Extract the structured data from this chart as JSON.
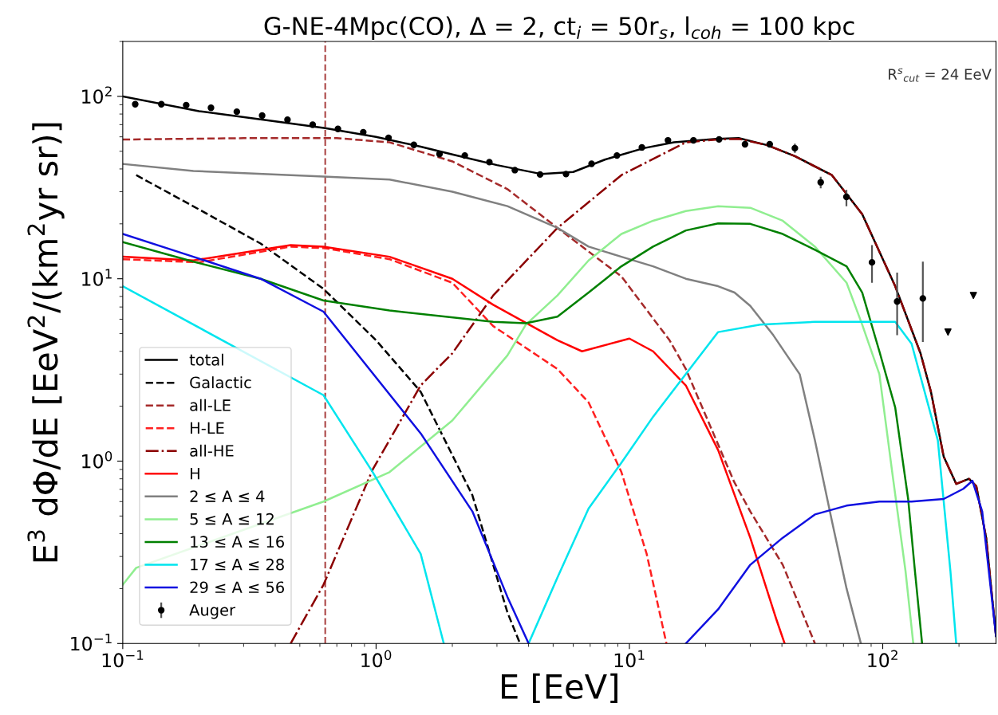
{
  "chart_data": {
    "type": "line",
    "title": "G-NE-4Mpc(CO), Δ = 2, ct$_{i}$ = 50r$_{s}$, l$_{coh}$ = 100 kpc",
    "xlabel": "E [EeV]",
    "ylabel": "E$^{3}$ dΦ/dE [EeV$^{2}$/(km$^{2}$yr sr)]",
    "annotations": [
      "R$^{s}$$_{cut}$ = 24 EeV"
    ],
    "log": "xy",
    "xlim": [
      0.1,
      280
    ],
    "ylim": [
      0.1,
      200
    ],
    "xticks": [
      {
        "value": 0.1,
        "label": "10$^{−1}$"
      },
      {
        "value": 1,
        "label": "10$^{0}$"
      },
      {
        "value": 10,
        "label": "10$^{1}$"
      },
      {
        "value": 100,
        "label": "10$^{2}$"
      }
    ],
    "yticks": [
      {
        "value": 0.1,
        "label": "10$^{−1}$"
      },
      {
        "value": 1,
        "label": "10$^{0}$"
      },
      {
        "value": 10,
        "label": "10$^{1}$"
      },
      {
        "value": 100,
        "label": "10$^{2}$"
      }
    ],
    "grid": false,
    "legend": "bottom left",
    "ref_lines": [
      {
        "axis": "x",
        "value": 0.63,
        "color": "#b05050",
        "line_style": "dashed"
      }
    ],
    "series": [
      {
        "name": "total",
        "color": "#000000",
        "line_style": "solid",
        "x": [
          0.1,
          0.2,
          0.4,
          0.63,
          1.0,
          1.5,
          2,
          3,
          4.5,
          6,
          8,
          11.4,
          15,
          22,
          27,
          35,
          45,
          63,
          83,
          112,
          141,
          155,
          174,
          195,
          219,
          234,
          256,
          280
        ],
        "values": [
          100,
          83,
          73,
          67,
          60,
          53,
          48,
          42,
          37.5,
          38.5,
          45,
          52,
          56,
          58.5,
          59,
          54,
          47,
          37,
          22.6,
          9.1,
          3.9,
          2.4,
          1.06,
          0.75,
          0.8,
          0.73,
          0.38,
          0.11
        ]
      },
      {
        "name": "Galactic",
        "color": "#000000",
        "line_style": "dashed",
        "x": [
          0.113,
          0.2,
          0.35,
          0.62,
          1.0,
          1.5,
          2.4,
          3.3,
          3.7
        ],
        "values": [
          37,
          24,
          15.6,
          8.8,
          4.6,
          2.4,
          0.65,
          0.148,
          0.1
        ]
      },
      {
        "name": "all-LE",
        "color": "#a52a2a",
        "line_style": "dashed",
        "x": [
          0.1,
          0.3,
          0.7,
          1.13,
          2.0,
          3.3,
          5.2,
          9.3,
          14.4,
          16.7,
          25.9,
          30,
          40.3,
          54
        ],
        "values": [
          58,
          59,
          59,
          56,
          44,
          31,
          19,
          10.3,
          4.6,
          3.2,
          0.77,
          0.53,
          0.27,
          0.1
        ]
      },
      {
        "name": "H-LE",
        "color": "#ff2020",
        "line_style": "dashed",
        "x": [
          0.1,
          0.2,
          0.46,
          0.63,
          1.13,
          2.0,
          2.9,
          5.2,
          6.9,
          9.3,
          11.7,
          14.0
        ],
        "values": [
          12.8,
          12.3,
          15,
          14.7,
          12.8,
          9.5,
          5.5,
          3.2,
          2.1,
          0.87,
          0.31,
          0.1
        ]
      },
      {
        "name": "all-HE",
        "color": "#8b0000",
        "line_style": "dashdot",
        "x": [
          0.46,
          0.62,
          0.97,
          1.5,
          2.0,
          2.9,
          5.2,
          9.3,
          16.7,
          22.4,
          27,
          35,
          45,
          63,
          83,
          112,
          141,
          155,
          174,
          195,
          219,
          234,
          256,
          280
        ],
        "values": [
          0.1,
          0.21,
          0.9,
          2.6,
          3.9,
          8.1,
          19,
          37,
          56,
          58,
          58.5,
          54,
          47,
          37,
          22.6,
          9.1,
          3.9,
          2.4,
          1.06,
          0.75,
          0.8,
          0.73,
          0.38,
          0.11
        ]
      },
      {
        "name": "H",
        "color": "#ff0000",
        "line_style": "solid",
        "x": [
          0.1,
          0.19,
          0.46,
          0.62,
          1.13,
          2.0,
          2.9,
          5.2,
          6.5,
          10,
          12.4,
          16.7,
          22.4,
          30,
          38,
          41
        ],
        "values": [
          13.2,
          12.6,
          15.3,
          15,
          13.2,
          10,
          7.2,
          4.6,
          4.0,
          4.7,
          4.0,
          2.6,
          1.15,
          0.38,
          0.136,
          0.1
        ]
      },
      {
        "name": "2 ≤ A ≤ 4",
        "color": "#808080",
        "line_style": "solid",
        "x": [
          0.1,
          0.19,
          0.62,
          1.13,
          2.0,
          3.3,
          5.2,
          6.9,
          9.3,
          12.4,
          16.7,
          22.4,
          26,
          30,
          37,
          47,
          54,
          63,
          72,
          82
        ],
        "values": [
          42.6,
          39,
          36.3,
          35,
          30,
          25,
          19,
          15,
          13.2,
          11.7,
          10,
          9.1,
          8.4,
          7.1,
          4.9,
          3.0,
          1.3,
          0.47,
          0.2,
          0.1
        ]
      },
      {
        "name": "5 ≤ A ≤ 12",
        "color": "#90ee90",
        "line_style": "solid",
        "x": [
          0.1,
          0.113,
          0.62,
          1.13,
          2.0,
          3.3,
          3.9,
          5.2,
          6.9,
          9.3,
          12.4,
          16.7,
          22.4,
          30,
          40.3,
          54,
          72,
          83,
          97,
          109,
          123,
          132
        ],
        "values": [
          0.21,
          0.26,
          0.6,
          0.87,
          1.67,
          3.8,
          5.6,
          8.1,
          12.6,
          17.6,
          20.8,
          23.5,
          25,
          24.5,
          20.8,
          15,
          9.5,
          5.6,
          3.0,
          0.87,
          0.25,
          0.1
        ]
      },
      {
        "name": "13 ≤ A ≤ 16",
        "color": "#008000",
        "line_style": "solid",
        "x": [
          0.1,
          0.19,
          0.35,
          0.62,
          1.13,
          2.9,
          3.9,
          5.2,
          6.9,
          9.3,
          12.4,
          16.7,
          22.4,
          30,
          40.3,
          54,
          72,
          83,
          97,
          112,
          126,
          134,
          143
        ],
        "values": [
          15.9,
          12.4,
          10,
          7.6,
          6.7,
          5.8,
          5.7,
          6.2,
          8.4,
          11.7,
          15,
          18.4,
          20.1,
          20,
          17.6,
          14.4,
          11.7,
          8.4,
          4.0,
          1.97,
          0.62,
          0.25,
          0.1
        ]
      },
      {
        "name": "17 ≤ A ≤ 28",
        "color": "#00e5ee",
        "line_style": "solid",
        "x": [
          0.1,
          0.62,
          0.97,
          1.5,
          1.85,
          3.0,
          4.0,
          5.2,
          6.9,
          9.3,
          12.4,
          16.7,
          22.4,
          32.8,
          54,
          112,
          130,
          165,
          185,
          195
        ],
        "values": [
          9.1,
          2.3,
          0.87,
          0.31,
          0.1,
          null,
          0.1,
          0.23,
          0.55,
          0.98,
          1.75,
          3.0,
          5.1,
          5.6,
          5.8,
          5.8,
          4.4,
          1.3,
          0.25,
          0.1
        ]
      },
      {
        "name": "29 ≤ A ≤ 56",
        "color": "#1010e0",
        "line_style": "solid",
        "x": [
          0.1,
          0.19,
          0.35,
          0.62,
          1.5,
          2.4,
          3.3,
          4.0,
          10,
          16.7,
          22.4,
          30,
          40.3,
          54,
          72,
          97,
          130,
          174,
          208,
          226,
          247,
          280
        ],
        "values": [
          17.6,
          13.2,
          10,
          6.6,
          1.42,
          0.53,
          0.18,
          0.1,
          null,
          0.1,
          0.154,
          0.27,
          0.38,
          0.51,
          0.57,
          0.6,
          0.6,
          0.62,
          0.705,
          0.78,
          0.53,
          0.11
        ]
      },
      {
        "name": "Auger",
        "type": "scatter",
        "color": "#000000",
        "marker": "circle",
        "x": [
          0.112,
          0.142,
          0.178,
          0.223,
          0.282,
          0.355,
          0.447,
          0.562,
          0.707,
          0.89,
          1.12,
          1.41,
          1.78,
          2.24,
          2.8,
          3.53,
          4.44,
          5.62,
          7.09,
          8.93,
          11.2,
          14.2,
          17.9,
          22.6,
          28.6,
          35.8,
          45.0,
          56.9,
          71.9,
          90.7,
          114,
          144
        ],
        "values": [
          90.6,
          90.6,
          89.5,
          86.6,
          82.4,
          78.5,
          74.4,
          69.9,
          66.3,
          63.6,
          59.3,
          54.2,
          48.3,
          47.4,
          43.6,
          39.4,
          37.3,
          37.5,
          42.7,
          47.4,
          52.5,
          57.4,
          57.4,
          58.1,
          54.6,
          54.6,
          52.0,
          33.8,
          28.1,
          12.3,
          7.5,
          7.8
        ],
        "errors": [
          null,
          null,
          null,
          null,
          null,
          null,
          null,
          null,
          null,
          null,
          null,
          null,
          null,
          null,
          null,
          null,
          null,
          null,
          null,
          null,
          null,
          null,
          null,
          null,
          null,
          null,
          [
            49,
            55
          ],
          [
            31.3,
            36.2
          ],
          [
            25,
            30.7
          ],
          [
            9.5,
            15.3
          ],
          [
            4.9,
            10.8
          ],
          [
            4.5,
            12.4
          ]
        ]
      },
      {
        "type": "scatter",
        "color": "#000000",
        "marker": "triangle",
        "x": [
          181,
          228
        ],
        "values": [
          5.1,
          8.1
        ]
      }
    ]
  }
}
